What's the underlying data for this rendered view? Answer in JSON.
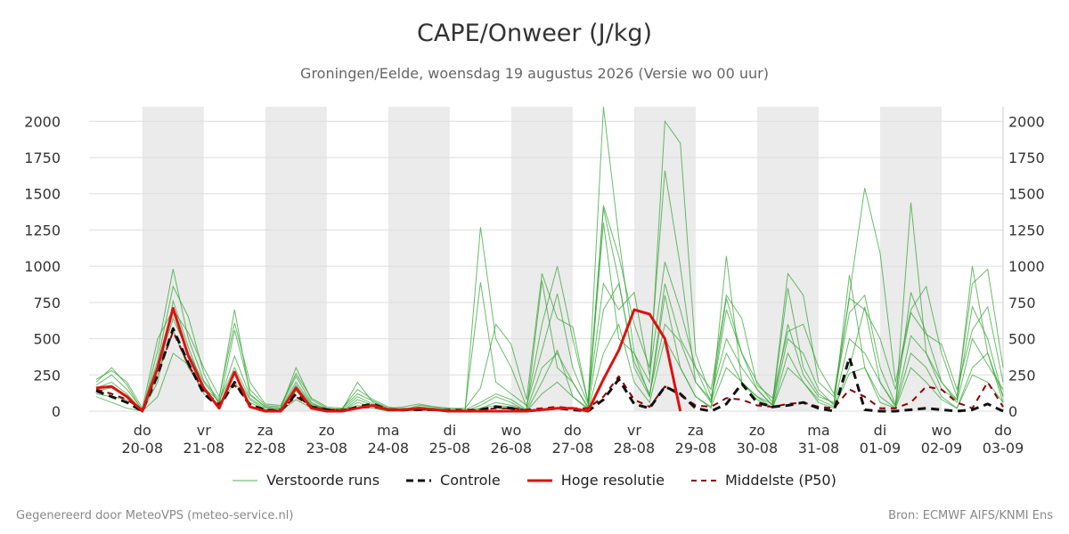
{
  "header": {
    "title": "CAPE/Onweer (J/kg)",
    "subtitle": "Groningen/Eelde, woensdag 19 augustus 2026 (Versie wo 00 uur)"
  },
  "footer": {
    "left": "Gegenereerd door MeteoVPS (meteo-service.nl)",
    "right": "Bron: ECMWF AIFS/KNMI Ens"
  },
  "legend": {
    "perturbed": "Verstoorde runs",
    "control": "Controle",
    "hires": "Hoge resolutie",
    "median": "Middelste (P50)"
  },
  "colors": {
    "perturbed": "#2ca02c",
    "control": "#111111",
    "hires": "#dd1111",
    "median": "#8b0000",
    "weekend_band": "#ebebeb",
    "grid": "#dddddd"
  },
  "chart_data": {
    "type": "line",
    "title": "CAPE/Onweer (J/kg)",
    "ylim": [
      0,
      2100
    ],
    "yticks": [
      0,
      250,
      500,
      750,
      1000,
      1250,
      1500,
      1750,
      2000
    ],
    "xlim_days": [
      19.25,
      34.0
    ],
    "x_ticks": [
      {
        "day": "do",
        "date": "20-08"
      },
      {
        "day": "vr",
        "date": "21-08"
      },
      {
        "day": "za",
        "date": "22-08"
      },
      {
        "day": "zo",
        "date": "23-08"
      },
      {
        "day": "ma",
        "date": "24-08"
      },
      {
        "day": "di",
        "date": "25-08"
      },
      {
        "day": "wo",
        "date": "26-08"
      },
      {
        "day": "do",
        "date": "27-08"
      },
      {
        "day": "vr",
        "date": "28-08"
      },
      {
        "day": "za",
        "date": "29-08"
      },
      {
        "day": "zo",
        "date": "30-08"
      },
      {
        "day": "ma",
        "date": "31-08"
      },
      {
        "day": "di",
        "date": "01-09"
      },
      {
        "day": "wo",
        "date": "02-09"
      },
      {
        "day": "do",
        "date": "03-09"
      }
    ],
    "shaded_days": [
      "20-08",
      "22-08",
      "24-08",
      "26-08",
      "28-08",
      "30-08",
      "01-09"
    ],
    "grid": true,
    "legend_position": "bottom-center",
    "series": [
      {
        "name": "Hoge resolutie",
        "style": "solid",
        "points": [
          [
            19.25,
            160
          ],
          [
            19.5,
            170
          ],
          [
            19.75,
            100
          ],
          [
            20.0,
            0
          ],
          [
            20.25,
            300
          ],
          [
            20.5,
            710
          ],
          [
            20.75,
            380
          ],
          [
            21.0,
            160
          ],
          [
            21.25,
            20
          ],
          [
            21.5,
            270
          ],
          [
            21.75,
            30
          ],
          [
            22.0,
            0
          ],
          [
            22.25,
            0
          ],
          [
            22.5,
            160
          ],
          [
            22.75,
            20
          ],
          [
            23.0,
            0
          ],
          [
            23.25,
            0
          ],
          [
            23.5,
            20
          ],
          [
            23.75,
            40
          ],
          [
            24.0,
            10
          ],
          [
            24.25,
            10
          ],
          [
            24.5,
            20
          ],
          [
            24.75,
            10
          ],
          [
            25.0,
            0
          ],
          [
            25.25,
            0
          ],
          [
            25.5,
            0
          ],
          [
            25.75,
            0
          ],
          [
            26.0,
            0
          ],
          [
            26.25,
            0
          ],
          [
            26.5,
            10
          ],
          [
            26.75,
            20
          ],
          [
            27.0,
            20
          ],
          [
            27.25,
            0
          ],
          [
            27.5,
            220
          ],
          [
            27.75,
            420
          ],
          [
            28.0,
            700
          ],
          [
            28.25,
            670
          ],
          [
            28.5,
            500
          ],
          [
            28.75,
            0
          ]
        ]
      },
      {
        "name": "Controle",
        "style": "dashed",
        "points": [
          [
            19.25,
            140
          ],
          [
            19.5,
            100
          ],
          [
            19.75,
            60
          ],
          [
            20.0,
            0
          ],
          [
            20.25,
            250
          ],
          [
            20.5,
            570
          ],
          [
            20.75,
            330
          ],
          [
            21.0,
            120
          ],
          [
            21.25,
            30
          ],
          [
            21.5,
            200
          ],
          [
            21.75,
            40
          ],
          [
            22.0,
            10
          ],
          [
            22.25,
            0
          ],
          [
            22.5,
            120
          ],
          [
            22.75,
            30
          ],
          [
            23.0,
            10
          ],
          [
            23.25,
            0
          ],
          [
            23.5,
            30
          ],
          [
            23.75,
            50
          ],
          [
            24.0,
            10
          ],
          [
            24.25,
            10
          ],
          [
            24.5,
            10
          ],
          [
            24.75,
            10
          ],
          [
            25.0,
            0
          ],
          [
            25.25,
            0
          ],
          [
            25.5,
            10
          ],
          [
            25.75,
            30
          ],
          [
            26.0,
            20
          ],
          [
            26.25,
            0
          ],
          [
            26.5,
            10
          ],
          [
            26.75,
            20
          ],
          [
            27.0,
            10
          ],
          [
            27.25,
            0
          ],
          [
            27.5,
            80
          ],
          [
            27.75,
            220
          ],
          [
            28.0,
            50
          ],
          [
            28.25,
            20
          ],
          [
            28.5,
            170
          ],
          [
            28.75,
            120
          ],
          [
            29.0,
            20
          ],
          [
            29.25,
            0
          ],
          [
            29.5,
            50
          ],
          [
            29.75,
            190
          ],
          [
            30.0,
            60
          ],
          [
            30.25,
            30
          ],
          [
            30.5,
            40
          ],
          [
            30.75,
            60
          ],
          [
            31.0,
            20
          ],
          [
            31.25,
            0
          ],
          [
            31.5,
            370
          ],
          [
            31.75,
            10
          ],
          [
            32.0,
            0
          ],
          [
            32.25,
            0
          ],
          [
            32.5,
            10
          ],
          [
            32.75,
            20
          ],
          [
            33.0,
            10
          ],
          [
            33.25,
            0
          ],
          [
            33.5,
            10
          ],
          [
            33.75,
            50
          ],
          [
            34.0,
            0
          ]
        ]
      },
      {
        "name": "Middelste (P50)",
        "style": "dashed",
        "points": [
          [
            19.25,
            150
          ],
          [
            19.5,
            120
          ],
          [
            19.75,
            80
          ],
          [
            20.0,
            10
          ],
          [
            20.25,
            260
          ],
          [
            20.5,
            550
          ],
          [
            20.75,
            320
          ],
          [
            21.0,
            140
          ],
          [
            21.25,
            50
          ],
          [
            21.5,
            180
          ],
          [
            21.75,
            50
          ],
          [
            22.0,
            10
          ],
          [
            22.25,
            10
          ],
          [
            22.5,
            100
          ],
          [
            22.75,
            30
          ],
          [
            23.0,
            10
          ],
          [
            23.25,
            10
          ],
          [
            23.5,
            20
          ],
          [
            23.75,
            30
          ],
          [
            24.0,
            10
          ],
          [
            24.25,
            10
          ],
          [
            24.5,
            10
          ],
          [
            24.75,
            10
          ],
          [
            25.0,
            10
          ],
          [
            25.25,
            10
          ],
          [
            25.5,
            10
          ],
          [
            25.75,
            20
          ],
          [
            26.0,
            20
          ],
          [
            26.25,
            10
          ],
          [
            26.5,
            20
          ],
          [
            26.75,
            30
          ],
          [
            27.0,
            20
          ],
          [
            27.25,
            20
          ],
          [
            27.5,
            100
          ],
          [
            27.75,
            240
          ],
          [
            28.0,
            80
          ],
          [
            28.25,
            30
          ],
          [
            28.5,
            170
          ],
          [
            28.75,
            110
          ],
          [
            29.0,
            40
          ],
          [
            29.25,
            30
          ],
          [
            29.5,
            90
          ],
          [
            29.75,
            80
          ],
          [
            30.0,
            40
          ],
          [
            30.25,
            30
          ],
          [
            30.5,
            50
          ],
          [
            30.75,
            60
          ],
          [
            31.0,
            30
          ],
          [
            31.25,
            20
          ],
          [
            31.5,
            150
          ],
          [
            31.75,
            100
          ],
          [
            32.0,
            20
          ],
          [
            32.25,
            20
          ],
          [
            32.5,
            60
          ],
          [
            32.75,
            170
          ],
          [
            33.0,
            150
          ],
          [
            33.25,
            60
          ],
          [
            33.5,
            20
          ],
          [
            33.75,
            200
          ],
          [
            34.0,
            30
          ]
        ]
      }
    ],
    "perturbed_runs": {
      "name": "Verstoorde runs",
      "step_days": 0.25,
      "x_start": 19.25,
      "runs": [
        [
          200,
          300,
          180,
          0,
          420,
          980,
          500,
          210,
          80,
          700,
          120,
          30,
          20,
          300,
          80,
          20,
          10,
          200,
          60,
          20,
          10,
          30,
          20,
          10,
          0,
          20,
          60,
          40,
          10,
          900,
          300,
          200,
          20,
          1400,
          900,
          300,
          100,
          800,
          300,
          100,
          20,
          1070,
          200,
          100,
          50,
          850,
          300,
          120,
          50,
          940,
          300,
          60,
          20,
          1440,
          400,
          150,
          80,
          1000,
          400,
          100
        ],
        [
          180,
          250,
          150,
          10,
          350,
          860,
          650,
          260,
          40,
          560,
          150,
          40,
          30,
          240,
          60,
          10,
          20,
          150,
          80,
          30,
          10,
          40,
          30,
          20,
          10,
          1270,
          500,
          300,
          30,
          600,
          1000,
          500,
          60,
          2100,
          1200,
          400,
          200,
          2000,
          1850,
          400,
          100,
          500,
          300,
          150,
          40,
          600,
          250,
          100,
          60,
          800,
          1540,
          1090,
          200,
          700,
          860,
          400,
          100,
          880,
          980,
          300
        ],
        [
          120,
          100,
          80,
          0,
          200,
          760,
          440,
          160,
          70,
          300,
          90,
          20,
          10,
          180,
          40,
          20,
          0,
          80,
          40,
          10,
          20,
          20,
          10,
          0,
          10,
          890,
          200,
          120,
          40,
          420,
          810,
          300,
          50,
          1420,
          1070,
          600,
          300,
          1660,
          1000,
          200,
          80,
          780,
          400,
          200,
          60,
          950,
          800,
          200,
          100,
          680,
          800,
          300,
          50,
          820,
          540,
          200,
          80,
          720,
          500,
          100
        ],
        [
          220,
          280,
          200,
          20,
          500,
          700,
          540,
          300,
          100,
          610,
          200,
          50,
          40,
          260,
          90,
          30,
          20,
          120,
          70,
          20,
          30,
          50,
          30,
          20,
          20,
          160,
          600,
          460,
          80,
          950,
          640,
          580,
          60,
          880,
          700,
          820,
          250,
          1030,
          700,
          300,
          150,
          800,
          640,
          180,
          90,
          550,
          600,
          300,
          120,
          780,
          700,
          500,
          150,
          680,
          530,
          460,
          150,
          560,
          720,
          200
        ],
        [
          100,
          60,
          20,
          0,
          100,
          400,
          320,
          120,
          30,
          200,
          60,
          10,
          0,
          80,
          20,
          0,
          0,
          40,
          20,
          0,
          0,
          10,
          10,
          0,
          0,
          40,
          100,
          60,
          0,
          200,
          420,
          100,
          20,
          700,
          880,
          340,
          120,
          600,
          480,
          200,
          60,
          400,
          200,
          100,
          20,
          400,
          200,
          80,
          30,
          300,
          720,
          200,
          30,
          400,
          300,
          100,
          20,
          300,
          400,
          60
        ],
        [
          160,
          200,
          120,
          0,
          300,
          640,
          400,
          200,
          60,
          380,
          110,
          30,
          20,
          200,
          50,
          20,
          10,
          100,
          50,
          10,
          10,
          20,
          20,
          10,
          10,
          60,
          120,
          80,
          10,
          300,
          400,
          200,
          30,
          1300,
          500,
          400,
          100,
          880,
          500,
          300,
          60,
          700,
          400,
          150,
          40,
          500,
          400,
          150,
          40,
          500,
          400,
          200,
          40,
          520,
          400,
          200,
          60,
          500,
          320,
          150
        ],
        [
          140,
          160,
          100,
          0,
          250,
          560,
          300,
          140,
          40,
          260,
          80,
          10,
          10,
          140,
          30,
          10,
          0,
          60,
          30,
          0,
          0,
          20,
          10,
          0,
          0,
          20,
          40,
          30,
          0,
          120,
          200,
          100,
          10,
          400,
          600,
          200,
          60,
          500,
          300,
          100,
          30,
          300,
          200,
          80,
          20,
          300,
          200,
          60,
          20,
          260,
          300,
          100,
          20,
          300,
          200,
          80,
          20,
          250,
          200,
          60
        ]
      ]
    }
  }
}
